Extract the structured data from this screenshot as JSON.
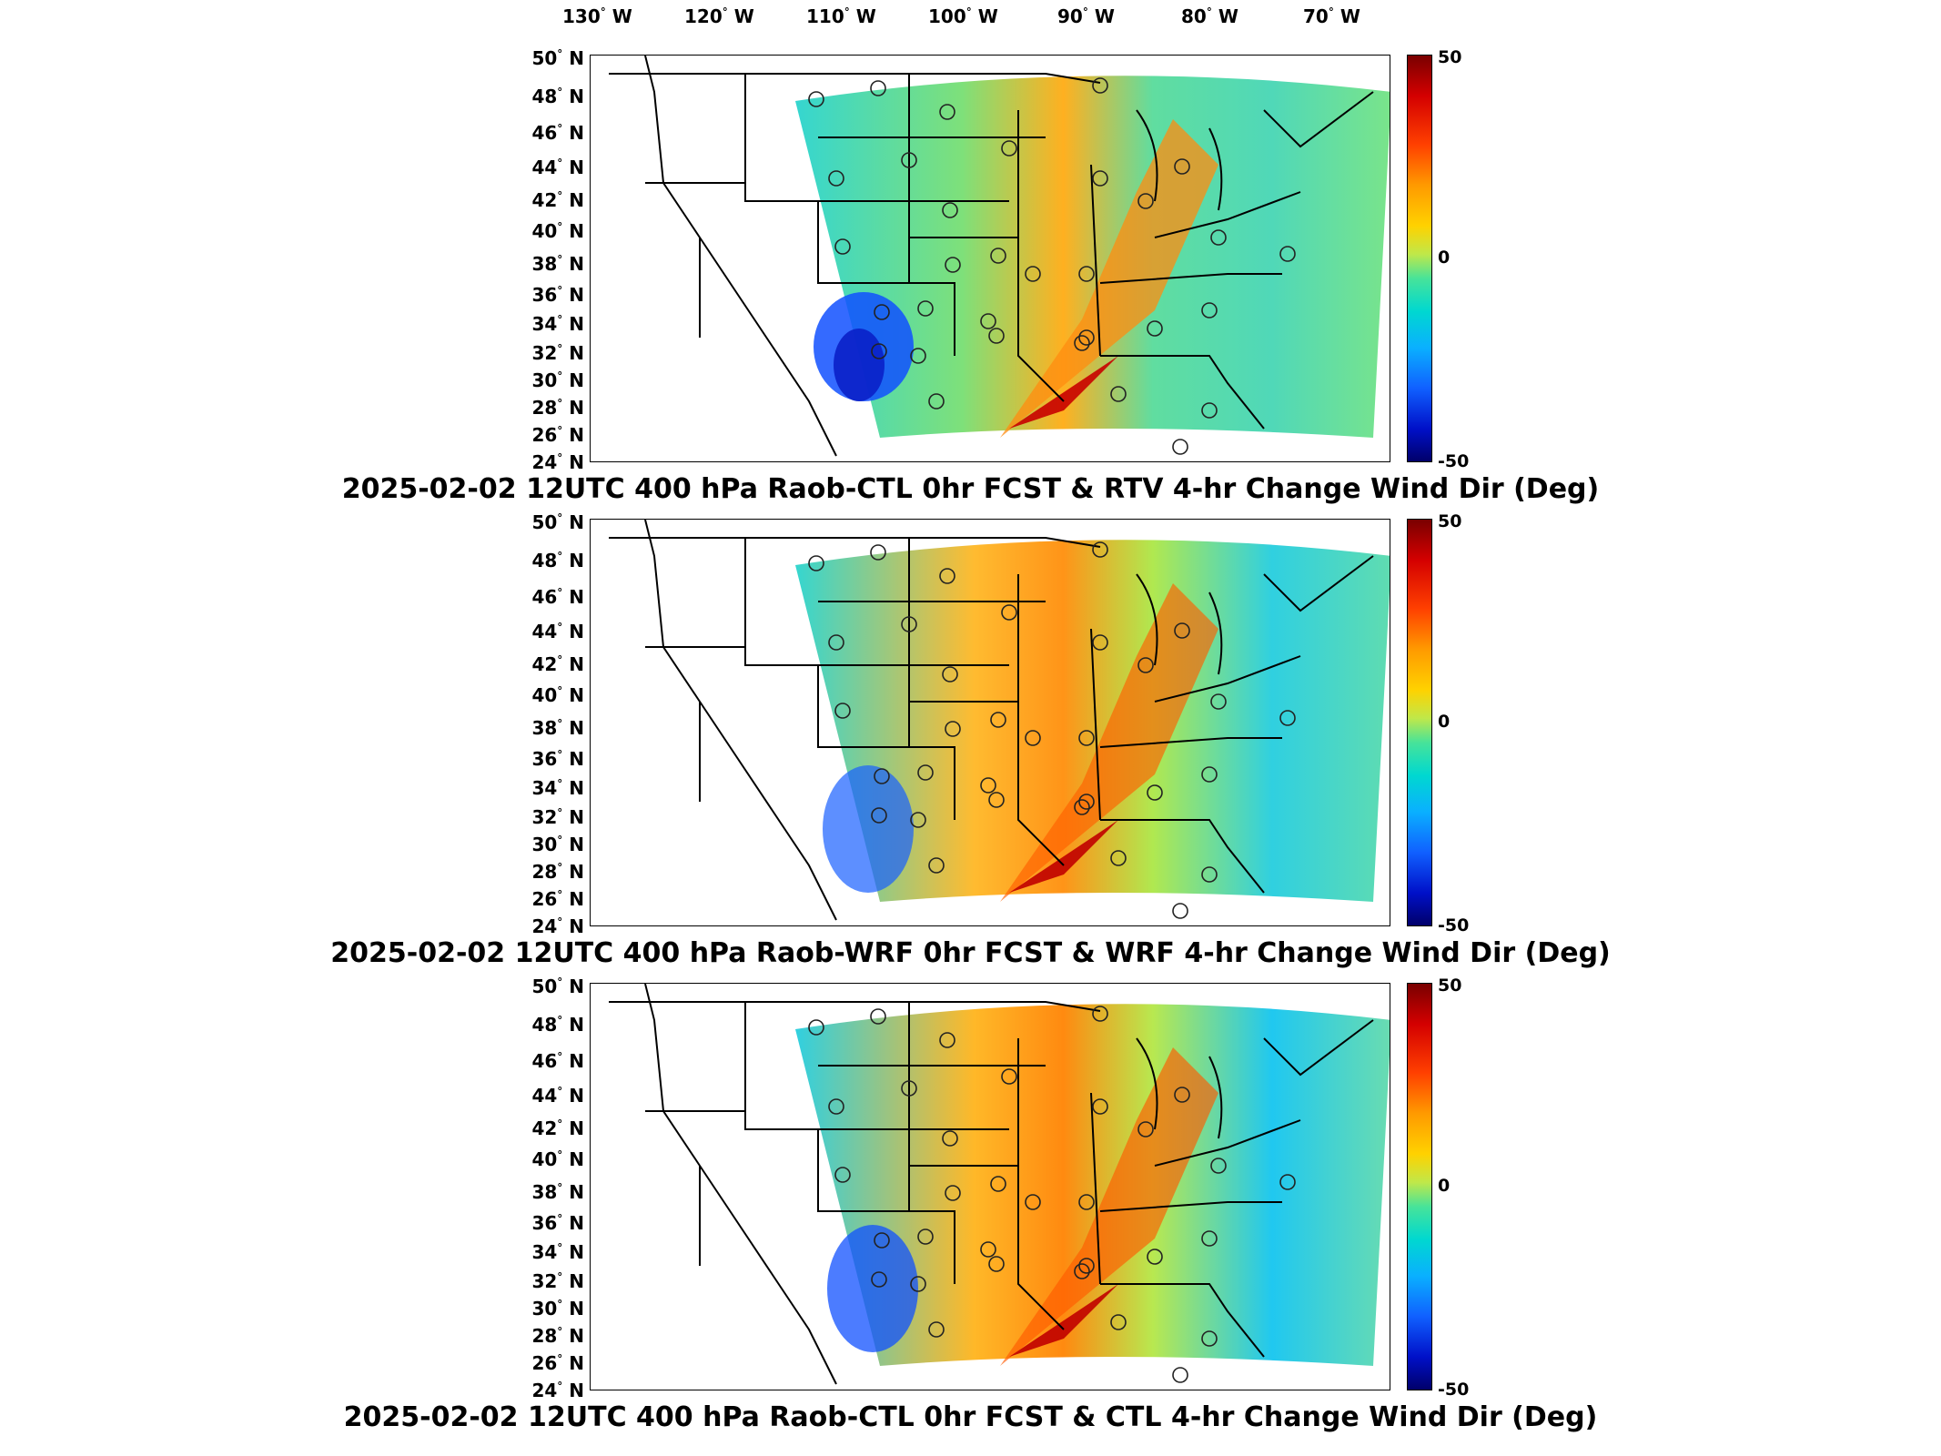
{
  "lon_labels": [
    {
      "deg": "130",
      "hem": "W"
    },
    {
      "deg": "120",
      "hem": "W"
    },
    {
      "deg": "110",
      "hem": "W"
    },
    {
      "deg": "100",
      "hem": "W"
    },
    {
      "deg": "90",
      "hem": "W"
    },
    {
      "deg": "80",
      "hem": "W"
    },
    {
      "deg": "70",
      "hem": "W"
    }
  ],
  "lat_labels": [
    "50",
    "48",
    "46",
    "44",
    "42",
    "40",
    "38",
    "36",
    "34",
    "32",
    "30",
    "28",
    "26",
    "24"
  ],
  "lat_hem": "N",
  "colorbar": {
    "max": "50",
    "mid": "0",
    "min": "-50"
  },
  "panels": [
    {
      "title": "2025-02-02 12UTC 400 hPa Raob-CTL 0hr FCST & RTV 4-hr Change Wind Dir (Deg)"
    },
    {
      "title": "2025-02-02 12UTC 400 hPa Raob-WRF 0hr FCST & WRF 4-hr Change Wind Dir (Deg)"
    },
    {
      "title": "2025-02-02 12UTC 400 hPa Raob-CTL 0hr FCST & CTL 4-hr Change Wind Dir (Deg)"
    }
  ]
}
